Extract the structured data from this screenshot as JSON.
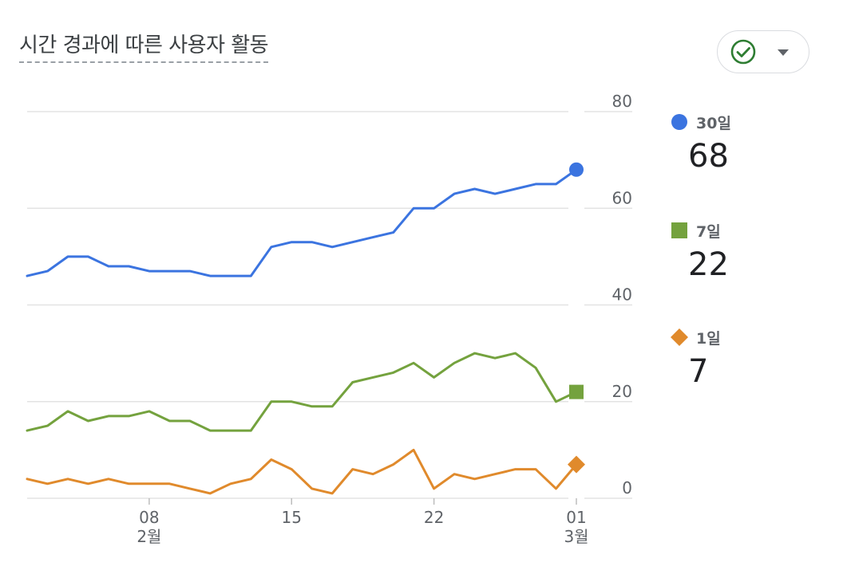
{
  "card": {
    "title": "시간 경과에 따른 사용자 활동"
  },
  "icons": {
    "compare": "check-circle-icon",
    "dropdown": "caret-down-icon"
  },
  "colors": {
    "series_30": "#3b74e0",
    "series_7": "#74a23e",
    "series_1": "#e08a2c",
    "grid": "#e3e3e3",
    "check": "#2e7d32"
  },
  "chart_data": {
    "type": "line",
    "title": "시간 경과에 따른 사용자 활동",
    "xlabel": "",
    "ylabel": "",
    "x_range": [
      "2월 2일",
      "3월 1일"
    ],
    "x_ticks": [
      {
        "day": 8,
        "label": "08",
        "month_label": "2월"
      },
      {
        "day": 15,
        "label": "15",
        "month_label": ""
      },
      {
        "day": 22,
        "label": "22",
        "month_label": ""
      },
      {
        "day": 29,
        "label": "01",
        "month_label": "3월"
      }
    ],
    "ylim": [
      0,
      80
    ],
    "y_ticks": [
      0,
      20,
      40,
      60,
      80
    ],
    "grid": true,
    "legend_position": "right",
    "x_days": [
      2,
      3,
      4,
      5,
      6,
      7,
      8,
      9,
      10,
      11,
      12,
      13,
      14,
      15,
      16,
      17,
      18,
      19,
      20,
      21,
      22,
      23,
      24,
      25,
      26,
      27,
      28,
      29
    ],
    "series": [
      {
        "name": "30일",
        "color": "#3b74e0",
        "marker": "circle",
        "last_value": "68",
        "values": [
          46,
          47,
          50,
          50,
          48,
          48,
          47,
          47,
          47,
          46,
          46,
          46,
          52,
          53,
          53,
          52,
          53,
          54,
          55,
          60,
          60,
          63,
          64,
          63,
          64,
          65,
          65,
          68
        ]
      },
      {
        "name": "7일",
        "color": "#74a23e",
        "marker": "square",
        "last_value": "22",
        "values": [
          14,
          15,
          18,
          16,
          17,
          17,
          18,
          16,
          16,
          14,
          14,
          14,
          20,
          20,
          19,
          19,
          24,
          25,
          26,
          28,
          25,
          28,
          30,
          29,
          30,
          27,
          20,
          22
        ]
      },
      {
        "name": "1일",
        "color": "#e08a2c",
        "marker": "diamond",
        "last_value": "7",
        "values": [
          4,
          3,
          4,
          3,
          4,
          3,
          3,
          3,
          2,
          1,
          3,
          4,
          8,
          6,
          2,
          1,
          6,
          5,
          7,
          10,
          2,
          5,
          4,
          5,
          6,
          6,
          2,
          7
        ]
      }
    ]
  }
}
